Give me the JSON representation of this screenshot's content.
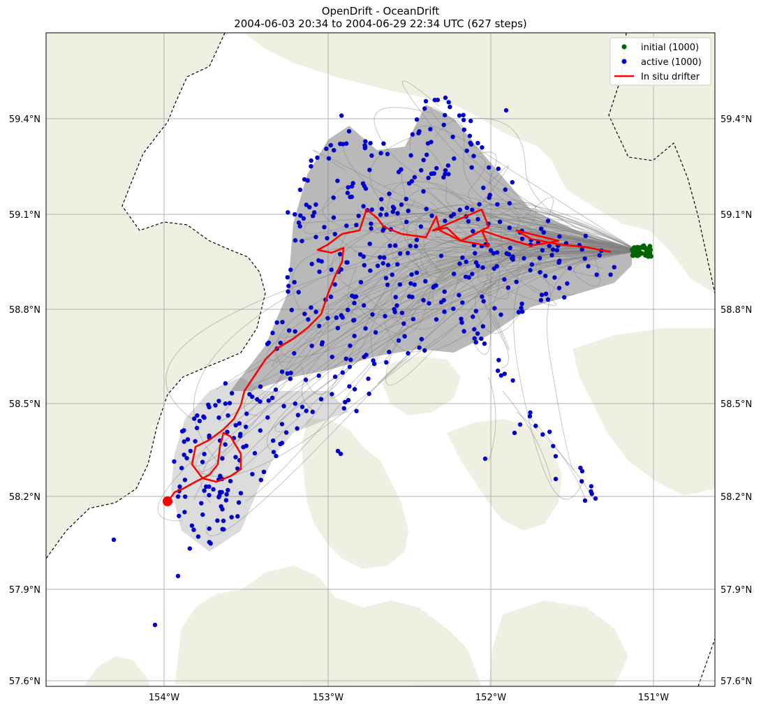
{
  "title": {
    "line1": "OpenDrift - OceanDrift",
    "line2": "2004-06-03 20:34 to 2004-06-29 22:34 UTC (627 steps)"
  },
  "map": {
    "lat_labels": [
      "59.4°N",
      "59.1°N",
      "58.8°N",
      "58.5°N",
      "58.2°N",
      "57.9°N",
      "57.6°N"
    ],
    "lon_labels": [
      "154°W",
      "153°W",
      "152°W",
      "151°W"
    ]
  },
  "legend": {
    "items": [
      {
        "label": "initial (1000)",
        "color": "#006400",
        "kind": "point"
      },
      {
        "label": "active (1000)",
        "color": "#0000cc",
        "kind": "point"
      },
      {
        "label": "In situ drifter",
        "color": "#ff0000",
        "kind": "line"
      }
    ]
  },
  "colors": {
    "land": "#efefe2",
    "trajectory": "#808080",
    "active": "#0000cc",
    "initial": "#006400",
    "drifter": "#ff0000",
    "grid": "#b0b0b0"
  }
}
